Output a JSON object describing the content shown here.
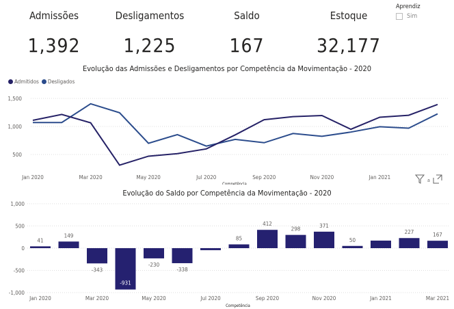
{
  "kpis": [
    {
      "label": "Admissões",
      "value": "1,392"
    },
    {
      "label": "Desligamentos",
      "value": "1,225"
    },
    {
      "label": "Saldo",
      "value": "167"
    },
    {
      "label": "Estoque",
      "value": "32,177"
    }
  ],
  "slicer": {
    "title": "Aprendiz",
    "option": "Sim",
    "checked": false
  },
  "icons": {
    "filter": "filter-icon",
    "expand": "focus-mode-icon"
  },
  "chart_data": [
    {
      "type": "line",
      "title": "Evolução das Admissões e Desligamentos por Competência da Movimentação - 2020",
      "xlabel": "Competência",
      "ylabel": "",
      "x": [
        "Jan 2020",
        "Feb 2020",
        "Mar 2020",
        "Apr 2020",
        "May 2020",
        "Jun 2020",
        "Jul 2020",
        "Aug 2020",
        "Sep 2020",
        "Oct 2020",
        "Nov 2020",
        "Dec 2020",
        "Jan 2021",
        "Feb 2021",
        "Mar 2021"
      ],
      "x_tick_labels": [
        "Jan 2020",
        "Mar 2020",
        "May 2020",
        "Jul 2020",
        "Sep 2020",
        "Nov 2020",
        "Jan 2021"
      ],
      "y_ticks": [
        "1,500",
        "1,000",
        "500"
      ],
      "ylim": [
        250,
        1600
      ],
      "grid": true,
      "legend": "top-left",
      "series": [
        {
          "name": "Admitidos",
          "color": "#252166",
          "values": [
            1110,
            1215,
            1065,
            310,
            470,
            515,
            600,
            850,
            1120,
            1175,
            1195,
            950,
            1165,
            1200,
            1392
          ]
        },
        {
          "name": "Desligados",
          "color": "#2B4C8C",
          "values": [
            1070,
            1070,
            1405,
            1245,
            700,
            855,
            650,
            770,
            710,
            875,
            825,
            900,
            995,
            970,
            1225
          ]
        }
      ]
    },
    {
      "type": "bar",
      "title": "Evolução do Saldo por Competência da Movimentação - 2020",
      "xlabel": "Competência",
      "ylabel": "",
      "categories": [
        "Jan 2020",
        "Feb 2020",
        "Mar 2020",
        "Apr 2020",
        "May 2020",
        "Jun 2020",
        "Jul 2020",
        "Aug 2020",
        "Sep 2020",
        "Oct 2020",
        "Nov 2020",
        "Dec 2020",
        "Jan 2021",
        "Feb 2021",
        "Mar 2021"
      ],
      "x_tick_labels": [
        "Jan 2020",
        "Mar 2020",
        "May 2020",
        "Jul 2020",
        "Sep 2020",
        "Nov 2020",
        "Jan 2021",
        "Mar 2021"
      ],
      "values": [
        41,
        149,
        -343,
        -931,
        -230,
        -338,
        -45,
        85,
        412,
        298,
        371,
        50,
        170,
        227,
        167
      ],
      "data_labels": [
        "41",
        "149",
        "-343",
        "-931",
        "-230",
        "-338",
        "",
        "85",
        "412",
        "298",
        "371",
        "50",
        "",
        "227",
        "167"
      ],
      "y_ticks": [
        "1,000",
        "500",
        "0",
        "-500",
        "-1,000"
      ],
      "ylim": [
        -1000,
        1000
      ],
      "grid": true,
      "color": "#252170"
    }
  ]
}
